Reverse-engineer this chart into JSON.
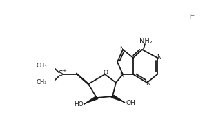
{
  "bg_color": "#ffffff",
  "line_color": "#1a1a1a",
  "line_width": 1.3,
  "font_size": 6.5,
  "iodide_text": "I⁻",
  "nh2_text": "NH₂",
  "ho1_text": "HO",
  "ho2_text": "OH",
  "s_text": "S",
  "plus_text": "+",
  "n_text": "N",
  "o_text": "O"
}
